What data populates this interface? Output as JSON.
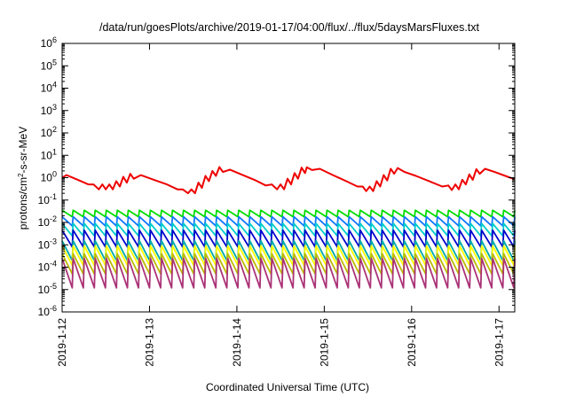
{
  "chart_data": {
    "type": "line",
    "title": "/data/run/goesPlots/archive/2019-01-17/04:00/flux/../flux/5daysMarsFluxes.txt",
    "xlabel": "Coordinated Universal Time (UTC)",
    "ylabel": {
      "base": "protons/cm",
      "sup": "2",
      "rest": "-s-sr-MeV"
    },
    "y_scale": "log",
    "ylim": [
      1e-06,
      1000000
    ],
    "y_ticks": [
      {
        "base": "10",
        "exp": "6"
      },
      {
        "base": "10",
        "exp": "5"
      },
      {
        "base": "10",
        "exp": "4"
      },
      {
        "base": "10",
        "exp": "3"
      },
      {
        "base": "10",
        "exp": "2"
      },
      {
        "base": "10",
        "exp": "1"
      },
      {
        "base": "10",
        "exp": "0"
      },
      {
        "base": "10",
        "exp": "-1"
      },
      {
        "base": "10",
        "exp": "-2"
      },
      {
        "base": "10",
        "exp": "-3"
      },
      {
        "base": "10",
        "exp": "-4"
      },
      {
        "base": "10",
        "exp": "-5"
      },
      {
        "base": "10",
        "exp": "-6"
      }
    ],
    "x_ticks": [
      "2019-1-12",
      "2019-1-13",
      "2019-1-14",
      "2019-1-15",
      "2019-1-16",
      "2019-1-17"
    ],
    "xlim_days": [
      0,
      5.18
    ],
    "grid": false,
    "legend": "none",
    "series": [
      {
        "color": "#ee0000",
        "x": [
          0.0,
          0.05,
          0.18,
          0.3,
          0.36,
          0.42,
          0.46,
          0.5,
          0.54,
          0.58,
          0.62,
          0.66,
          0.7,
          0.74,
          0.78,
          0.82,
          0.9,
          1.05,
          1.2,
          1.32,
          1.38,
          1.44,
          1.48,
          1.52,
          1.56,
          1.6,
          1.64,
          1.68,
          1.72,
          1.76,
          1.8,
          1.84,
          1.92,
          2.05,
          2.2,
          2.33,
          2.4,
          2.46,
          2.5,
          2.54,
          2.58,
          2.62,
          2.66,
          2.7,
          2.74,
          2.78,
          2.8,
          2.86,
          2.95,
          3.1,
          3.25,
          3.38,
          3.44,
          3.48,
          3.52,
          3.56,
          3.6,
          3.64,
          3.68,
          3.72,
          3.76,
          3.8,
          3.84,
          3.92,
          4.05,
          4.2,
          4.35,
          4.42,
          4.46,
          4.5,
          4.54,
          4.58,
          4.62,
          4.66,
          4.7,
          4.74,
          4.78,
          4.84,
          4.95,
          5.1,
          5.18
        ],
        "y": [
          1.0,
          1.3,
          0.8,
          0.5,
          0.5,
          0.3,
          0.5,
          0.3,
          0.5,
          0.3,
          0.7,
          0.4,
          1.1,
          0.6,
          1.5,
          0.9,
          1.3,
          0.8,
          0.5,
          0.3,
          0.3,
          0.2,
          0.3,
          0.2,
          0.6,
          0.35,
          1.2,
          0.7,
          2.0,
          1.2,
          3.0,
          1.8,
          2.3,
          1.4,
          0.8,
          0.45,
          0.5,
          0.3,
          0.5,
          0.3,
          0.9,
          0.5,
          1.6,
          0.9,
          2.8,
          1.6,
          2.9,
          2.2,
          2.5,
          1.3,
          0.7,
          0.4,
          0.4,
          0.25,
          0.4,
          0.25,
          0.7,
          0.4,
          1.3,
          0.75,
          2.5,
          1.5,
          2.7,
          1.8,
          1.2,
          0.7,
          0.4,
          0.45,
          0.28,
          0.5,
          0.3,
          0.8,
          0.5,
          1.4,
          0.8,
          2.4,
          1.5,
          2.5,
          1.8,
          1.1,
          0.85
        ]
      },
      {
        "color": "#00dd00",
        "peak": 0.035,
        "trough": 0.018,
        "teeth_per_day": 8
      },
      {
        "color": "#1177ff",
        "peak": 0.018,
        "trough": 0.007,
        "teeth_per_day": 8
      },
      {
        "color": "#00cccc",
        "peak": 0.009,
        "trough": 0.0025,
        "teeth_per_day": 8
      },
      {
        "color": "#0000cc",
        "peak": 0.0045,
        "trough": 0.0008,
        "teeth_per_day": 8
      },
      {
        "color": "#00aaaa",
        "peak": 0.0015,
        "trough": 0.0002,
        "teeth_per_day": 8
      },
      {
        "color": "#ffff00",
        "peak": 0.0009,
        "trough": 0.00012,
        "teeth_per_day": 8
      },
      {
        "color": "#bbbb00",
        "peak": 0.0004,
        "trough": 5e-05,
        "teeth_per_day": 8
      },
      {
        "color": "#aa3377",
        "peak": 0.00025,
        "trough": 1.2e-05,
        "teeth_per_day": 8
      }
    ]
  }
}
